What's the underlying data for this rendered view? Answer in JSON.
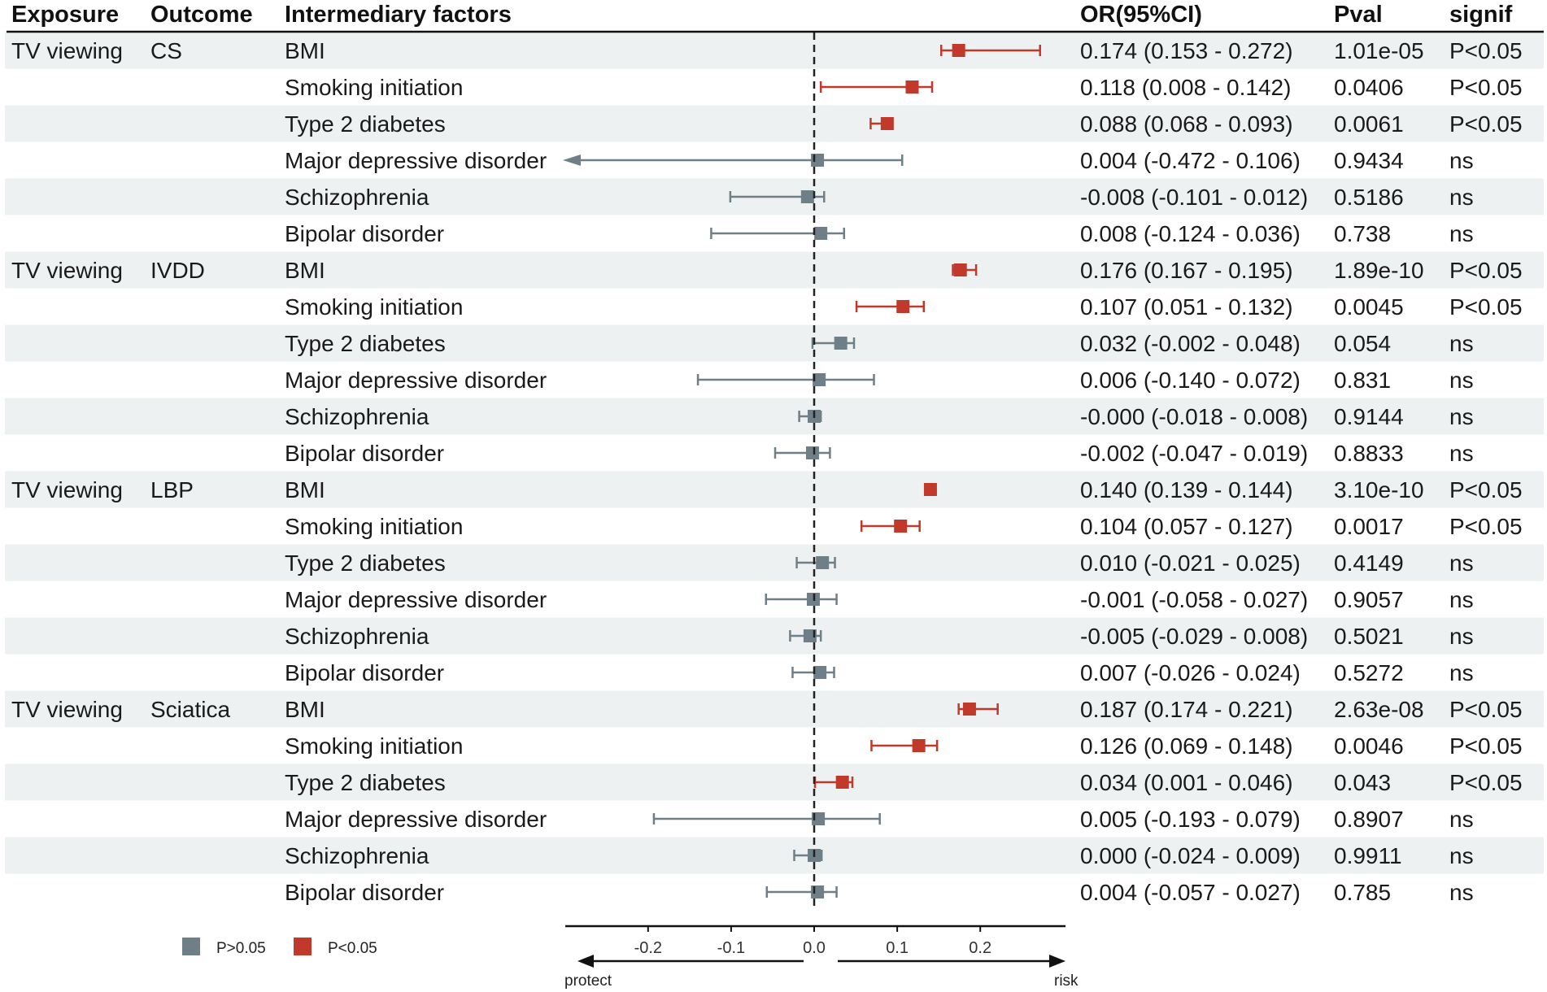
{
  "chart_data": {
    "type": "forest",
    "headers": {
      "exposure": "Exposure",
      "outcome": "Outcome",
      "factor": "Intermediary factors",
      "or": "OR(95%CI)",
      "pval": "Pval",
      "signif": "signif"
    },
    "groups": [
      {
        "exposure": "TV viewing",
        "outcome": "CS",
        "rows": [
          {
            "factor": "BMI",
            "est": 0.174,
            "lo": 0.153,
            "hi": 0.272,
            "or_text": "0.174 (0.153 - 0.272)",
            "pval": "1.01e-05",
            "signif": "P<0.05"
          },
          {
            "factor": "Smoking initiation",
            "est": 0.118,
            "lo": 0.008,
            "hi": 0.142,
            "or_text": "0.118 (0.008 - 0.142)",
            "pval": "0.0406",
            "signif": "P<0.05"
          },
          {
            "factor": "Type 2 diabetes",
            "est": 0.088,
            "lo": 0.068,
            "hi": 0.093,
            "or_text": "0.088 (0.068 - 0.093)",
            "pval": "0.0061",
            "signif": "P<0.05"
          },
          {
            "factor": "Major depressive disorder",
            "est": 0.004,
            "lo": -0.472,
            "hi": 0.106,
            "or_text": "0.004 (-0.472 - 0.106)",
            "pval": "0.9434",
            "signif": "ns"
          },
          {
            "factor": "Schizophrenia",
            "est": -0.008,
            "lo": -0.101,
            "hi": 0.012,
            "or_text": "-0.008 (-0.101 - 0.012)",
            "pval": "0.5186",
            "signif": "ns"
          },
          {
            "factor": "Bipolar disorder",
            "est": 0.008,
            "lo": -0.124,
            "hi": 0.036,
            "or_text": "0.008 (-0.124 - 0.036)",
            "pval": "0.738",
            "signif": "ns"
          }
        ]
      },
      {
        "exposure": "TV viewing",
        "outcome": "IVDD",
        "rows": [
          {
            "factor": "BMI",
            "est": 0.176,
            "lo": 0.167,
            "hi": 0.195,
            "or_text": "0.176 (0.167 - 0.195)",
            "pval": "1.89e-10",
            "signif": "P<0.05"
          },
          {
            "factor": "Smoking initiation",
            "est": 0.107,
            "lo": 0.051,
            "hi": 0.132,
            "or_text": "0.107 (0.051 - 0.132)",
            "pval": "0.0045",
            "signif": "P<0.05"
          },
          {
            "factor": "Type 2 diabetes",
            "est": 0.032,
            "lo": -0.002,
            "hi": 0.048,
            "or_text": "0.032 (-0.002 - 0.048)",
            "pval": "0.054",
            "signif": "ns"
          },
          {
            "factor": "Major depressive disorder",
            "est": 0.006,
            "lo": -0.14,
            "hi": 0.072,
            "or_text": "0.006 (-0.140 - 0.072)",
            "pval": "0.831",
            "signif": "ns"
          },
          {
            "factor": "Schizophrenia",
            "est": -0.0,
            "lo": -0.018,
            "hi": 0.008,
            "or_text": "-0.000 (-0.018 - 0.008)",
            "pval": "0.9144",
            "signif": "ns"
          },
          {
            "factor": "Bipolar disorder",
            "est": -0.002,
            "lo": -0.047,
            "hi": 0.019,
            "or_text": "-0.002 (-0.047 - 0.019)",
            "pval": "0.8833",
            "signif": "ns"
          }
        ]
      },
      {
        "exposure": "TV viewing",
        "outcome": "LBP",
        "rows": [
          {
            "factor": "BMI",
            "est": 0.14,
            "lo": 0.139,
            "hi": 0.144,
            "or_text": "0.140 (0.139 - 0.144)",
            "pval": "3.10e-10",
            "signif": "P<0.05"
          },
          {
            "factor": "Smoking initiation",
            "est": 0.104,
            "lo": 0.057,
            "hi": 0.127,
            "or_text": "0.104 (0.057 - 0.127)",
            "pval": "0.0017",
            "signif": "P<0.05"
          },
          {
            "factor": "Type 2 diabetes",
            "est": 0.01,
            "lo": -0.021,
            "hi": 0.025,
            "or_text": "0.010 (-0.021 - 0.025)",
            "pval": "0.4149",
            "signif": "ns"
          },
          {
            "factor": "Major depressive disorder",
            "est": -0.001,
            "lo": -0.058,
            "hi": 0.027,
            "or_text": "-0.001 (-0.058 - 0.027)",
            "pval": "0.9057",
            "signif": "ns"
          },
          {
            "factor": "Schizophrenia",
            "est": -0.005,
            "lo": -0.029,
            "hi": 0.008,
            "or_text": "-0.005 (-0.029 - 0.008)",
            "pval": "0.5021",
            "signif": "ns"
          },
          {
            "factor": "Bipolar disorder",
            "est": 0.007,
            "lo": -0.026,
            "hi": 0.024,
            "or_text": "0.007 (-0.026 - 0.024)",
            "pval": "0.5272",
            "signif": "ns"
          }
        ]
      },
      {
        "exposure": "TV viewing",
        "outcome": "Sciatica",
        "rows": [
          {
            "factor": "BMI",
            "est": 0.187,
            "lo": 0.174,
            "hi": 0.221,
            "or_text": "0.187 (0.174 - 0.221)",
            "pval": "2.63e-08",
            "signif": "P<0.05"
          },
          {
            "factor": "Smoking initiation",
            "est": 0.126,
            "lo": 0.069,
            "hi": 0.148,
            "or_text": "0.126 (0.069 - 0.148)",
            "pval": "0.0046",
            "signif": "P<0.05"
          },
          {
            "factor": "Type 2 diabetes",
            "est": 0.034,
            "lo": 0.001,
            "hi": 0.046,
            "or_text": "0.034 (0.001 - 0.046)",
            "pval": "0.043",
            "signif": "P<0.05"
          },
          {
            "factor": "Major depressive disorder",
            "est": 0.005,
            "lo": -0.193,
            "hi": 0.079,
            "or_text": "0.005 (-0.193 - 0.079)",
            "pval": "0.8907",
            "signif": "ns"
          },
          {
            "factor": "Schizophrenia",
            "est": 0.0,
            "lo": -0.024,
            "hi": 0.009,
            "or_text": "0.000 (-0.024 - 0.009)",
            "pval": "0.9911",
            "signif": "ns"
          },
          {
            "factor": "Bipolar disorder",
            "est": 0.004,
            "lo": -0.057,
            "hi": 0.027,
            "or_text": "0.004 (-0.057 - 0.027)",
            "pval": "0.785",
            "signif": "ns"
          }
        ]
      }
    ],
    "axis": {
      "xlim": [
        -0.3,
        0.3
      ],
      "ticks": [
        -0.2,
        -0.1,
        0.0,
        0.1,
        0.2
      ],
      "tick_labels": [
        "-0.2",
        "-0.1",
        "0.0",
        "0.1",
        "0.2"
      ],
      "reference": 0,
      "left_label": "protect",
      "right_label": "risk"
    },
    "legend": {
      "position": "bottom-left",
      "items": [
        {
          "label": "P>0.05",
          "color": "#6f7f88"
        },
        {
          "label": "P<0.05",
          "color": "#c0392b"
        }
      ]
    },
    "colors": {
      "significant": "#c0392b",
      "nonsignificant": "#6f7f88",
      "stripe": "#eef1f1"
    }
  }
}
